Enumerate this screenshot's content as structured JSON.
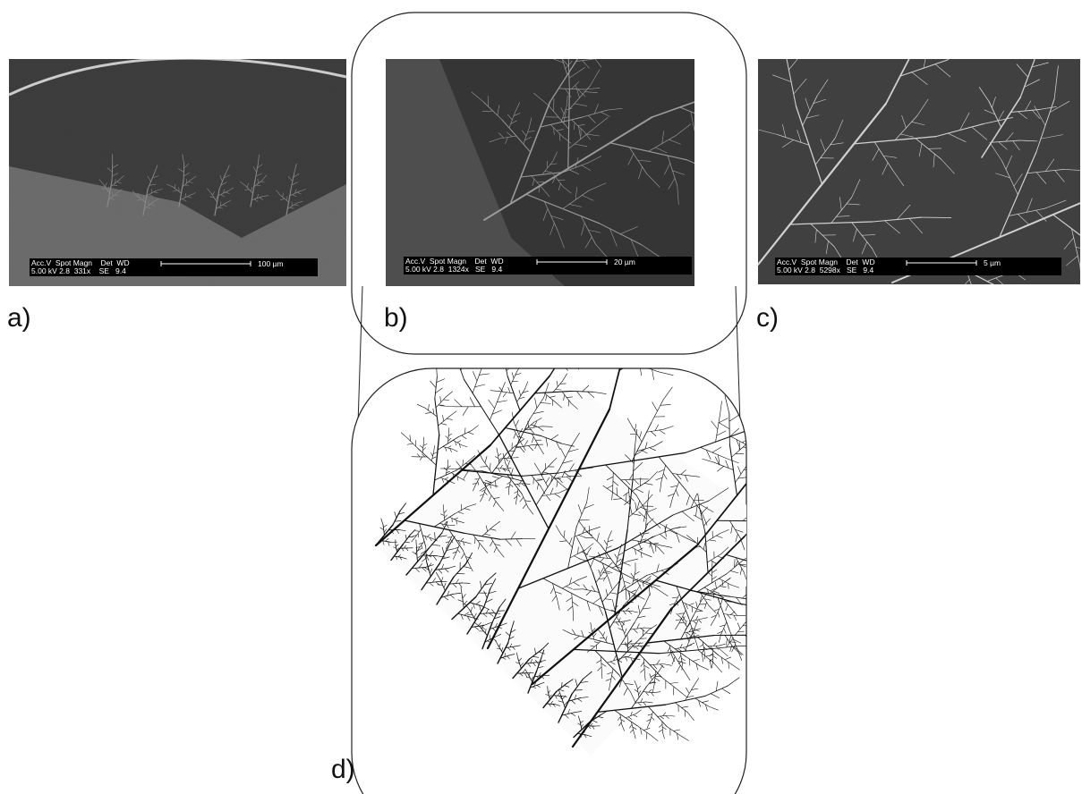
{
  "panels": [
    {
      "label": "a)",
      "info_header": "Acc.V  Spot Magn    Det  WD",
      "info_values": "5.00 kV 2.8  331x    SE   9.4",
      "scale": "100 µm"
    },
    {
      "label": "b)",
      "info_header": "Acc.V  Spot Magn    Det  WD",
      "info_values": "5.00 kV 2.8  1324x   SE   9.4",
      "scale": "20 µm"
    },
    {
      "label": "c)",
      "info_header": "Acc.V  Spot Magn    Det  WD",
      "info_values": "5.00 kV 2.8  5298x   SE   9.4",
      "scale": "5 µm"
    }
  ],
  "simulation": {
    "label": "d)"
  }
}
